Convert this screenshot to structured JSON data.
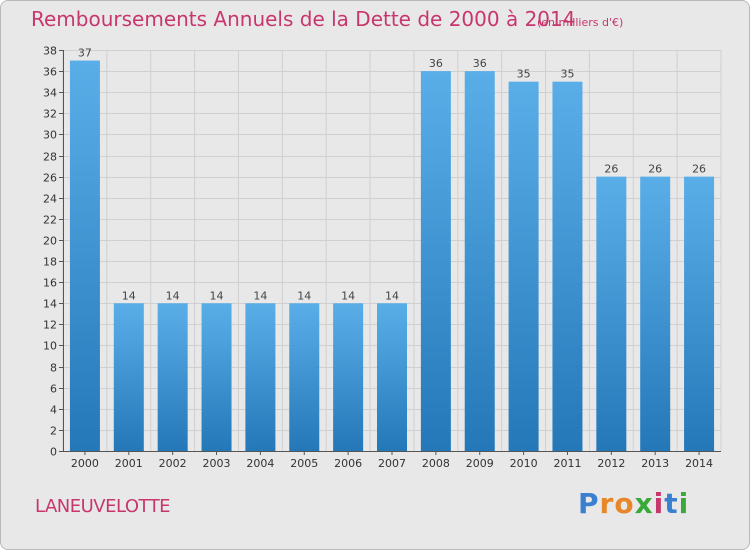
{
  "header": {
    "title": "Remboursements Annuels de la Dette de 2000 à 2014",
    "subtitle": "(en milliers d'€)"
  },
  "footer": {
    "commune": "LANEUVELOTTE",
    "brand_letters": [
      "P",
      "r",
      "o",
      "x",
      "i",
      "t",
      "i"
    ]
  },
  "colors": {
    "bar_top": "#5aaee8",
    "bar_bottom": "#2478b8",
    "title": "#c8366e",
    "brand": [
      "#3a7fd0",
      "#e8862a",
      "#e8862a",
      "#3aa83a",
      "#c8366e",
      "#3a7fd0",
      "#3aa83a"
    ]
  },
  "chart_data": {
    "type": "bar",
    "categories": [
      "2000",
      "2001",
      "2002",
      "2003",
      "2004",
      "2005",
      "2006",
      "2007",
      "2008",
      "2009",
      "2010",
      "2011",
      "2012",
      "2013",
      "2014"
    ],
    "values": [
      37,
      14,
      14,
      14,
      14,
      14,
      14,
      14,
      36,
      36,
      35,
      35,
      26,
      26,
      26
    ],
    "ylim": [
      0,
      38
    ],
    "yticks": [
      0,
      2,
      4,
      6,
      8,
      10,
      12,
      14,
      16,
      18,
      20,
      22,
      24,
      26,
      28,
      30,
      32,
      34,
      36,
      38
    ],
    "grid": true
  }
}
